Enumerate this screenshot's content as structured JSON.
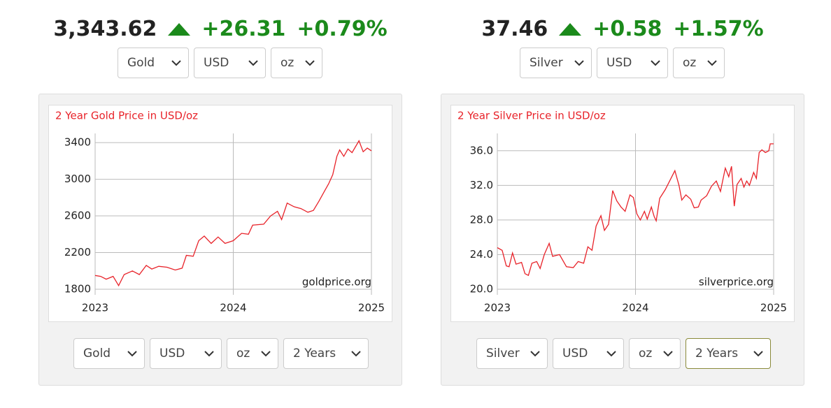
{
  "widgets": [
    {
      "quote": {
        "price": "3,343.62",
        "change": "+26.31",
        "percent": "+0.79%"
      },
      "top_selectors": [
        "Gold",
        "USD",
        "oz"
      ],
      "bottom_selectors": [
        "Gold",
        "USD",
        "oz",
        "2 Years"
      ]
    },
    {
      "quote": {
        "price": "37.46",
        "change": "+0.58",
        "percent": "+1.57%"
      },
      "top_selectors": [
        "Silver",
        "USD",
        "oz"
      ],
      "bottom_selectors": [
        "Silver",
        "USD",
        "oz",
        "2 Years"
      ]
    }
  ],
  "chart_data": [
    {
      "type": "line",
      "title": "2 Year Gold Price in USD/oz",
      "annotation": "goldprice.org",
      "color": "#e8232a",
      "grid": true,
      "xlim": [
        2023,
        2025
      ],
      "xticks": [
        2023,
        2024,
        2025
      ],
      "ylim": [
        1800,
        3500
      ],
      "yticks": [
        1800,
        2200,
        2600,
        3000,
        3400
      ],
      "x": [
        2023.0,
        2023.04,
        2023.08,
        2023.13,
        2023.17,
        2023.21,
        2023.27,
        2023.32,
        2023.37,
        2023.41,
        2023.46,
        2023.52,
        2023.58,
        2023.63,
        2023.66,
        2023.71,
        2023.75,
        2023.79,
        2023.84,
        2023.89,
        2023.94,
        2024.0,
        2024.06,
        2024.11,
        2024.14,
        2024.22,
        2024.27,
        2024.32,
        2024.35,
        2024.37,
        2024.39,
        2024.44,
        2024.49,
        2024.54,
        2024.58,
        2024.62,
        2024.66,
        2024.69,
        2024.72,
        2024.75,
        2024.77,
        2024.8,
        2024.83,
        2024.86,
        2024.91,
        2024.94,
        2024.97,
        2025.0
      ],
      "values": [
        1950,
        1940,
        1910,
        1940,
        1840,
        1960,
        2000,
        1960,
        2060,
        2020,
        2050,
        2040,
        2010,
        2030,
        2170,
        2160,
        2330,
        2380,
        2300,
        2370,
        2300,
        2330,
        2410,
        2400,
        2500,
        2510,
        2600,
        2650,
        2560,
        2650,
        2740,
        2700,
        2680,
        2640,
        2660,
        2760,
        2870,
        2950,
        3050,
        3250,
        3320,
        3250,
        3330,
        3290,
        3420,
        3300,
        3340,
        3310
      ]
    },
    {
      "type": "line",
      "title": "2 Year Silver Price in USD/oz",
      "annotation": "silverprice.org",
      "color": "#e8232a",
      "grid": true,
      "xlim": [
        2023,
        2025
      ],
      "xticks": [
        2023,
        2024,
        2025
      ],
      "ylim": [
        20,
        38
      ],
      "yticks": [
        {
          "value": 20,
          "label": "20.0"
        },
        {
          "value": 24,
          "label": "24.0"
        },
        {
          "value": 28,
          "label": "28.0"
        },
        {
          "value": 32,
          "label": "32.0"
        },
        {
          "value": 36,
          "label": "36.0"
        }
      ],
      "x": [
        2023.0,
        2023.035,
        2023.065,
        2023.085,
        2023.11,
        2023.135,
        2023.175,
        2023.2,
        2023.225,
        2023.25,
        2023.285,
        2023.31,
        2023.34,
        2023.375,
        2023.4,
        2023.45,
        2023.5,
        2023.55,
        2023.585,
        2023.625,
        2023.655,
        2023.685,
        2023.715,
        2023.75,
        2023.775,
        2023.805,
        2023.835,
        2023.865,
        2023.895,
        2023.925,
        2023.96,
        2023.985,
        2024.01,
        2024.035,
        2024.065,
        2024.085,
        2024.115,
        2024.135,
        2024.15,
        2024.175,
        2024.215,
        2024.25,
        2024.285,
        2024.315,
        2024.335,
        2024.365,
        2024.4,
        2024.425,
        2024.455,
        2024.475,
        2024.515,
        2024.55,
        2024.585,
        2024.615,
        2024.65,
        2024.675,
        2024.695,
        2024.715,
        2024.735,
        2024.765,
        2024.785,
        2024.805,
        2024.825,
        2024.855,
        2024.875,
        2024.895,
        2024.915,
        2024.94,
        2024.965,
        2024.975,
        2025.0
      ],
      "values": [
        24.8,
        24.5,
        22.7,
        22.6,
        24.2,
        22.9,
        23.1,
        21.8,
        21.6,
        23.0,
        23.2,
        22.4,
        24.0,
        25.3,
        23.8,
        24.0,
        22.6,
        22.5,
        23.2,
        23.0,
        24.9,
        24.5,
        27.3,
        28.5,
        26.8,
        27.5,
        31.4,
        30.2,
        29.5,
        29.0,
        30.9,
        30.6,
        28.7,
        28.0,
        29.0,
        28.1,
        29.5,
        28.4,
        27.9,
        30.5,
        31.5,
        32.6,
        33.7,
        32.0,
        30.3,
        30.9,
        30.4,
        29.4,
        29.5,
        30.3,
        30.8,
        31.9,
        32.5,
        31.3,
        34.0,
        33.0,
        34.2,
        29.6,
        32.1,
        32.8,
        31.8,
        32.5,
        32.0,
        33.5,
        32.8,
        35.8,
        36.1,
        35.8,
        36.0,
        36.8,
        36.8
      ]
    }
  ]
}
